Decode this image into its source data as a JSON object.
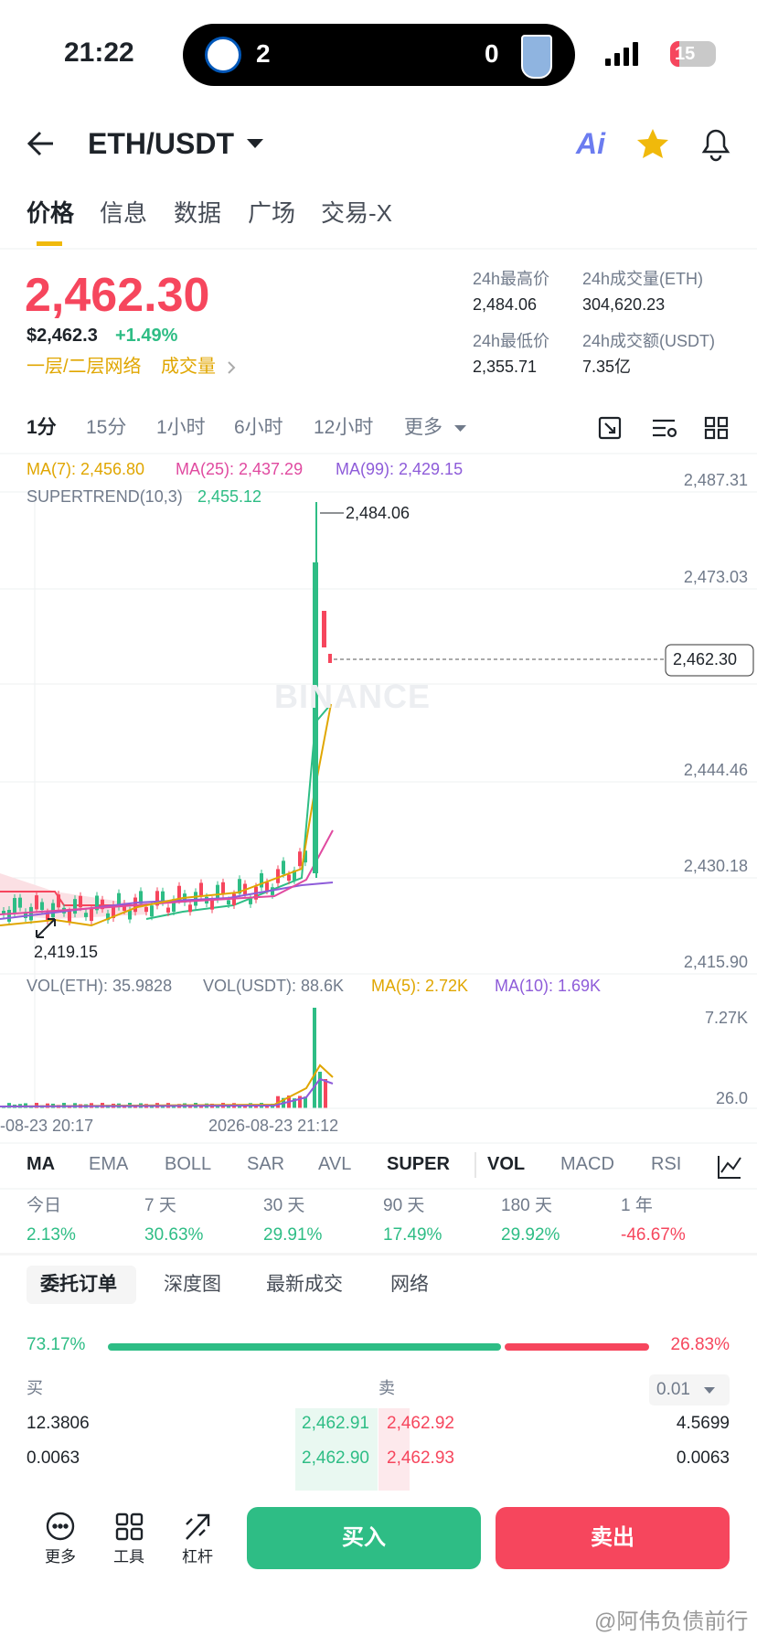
{
  "status": {
    "time": "21:22",
    "score_home": "2",
    "score_away": "0",
    "battery": "15"
  },
  "header": {
    "pair": "ETH/USDT",
    "ai": "Ai"
  },
  "tabs": [
    "价格",
    "信息",
    "数据",
    "广场",
    "交易-X"
  ],
  "price": {
    "last": "2,462.30",
    "usd": "$2,462.3",
    "change": "+1.49%",
    "tags": [
      "一层/二层网络",
      "成交量"
    ]
  },
  "stats": [
    {
      "label": "24h最高价",
      "value": "2,484.06"
    },
    {
      "label": "24h成交量(ETH)",
      "value": "304,620.23"
    },
    {
      "label": "24h最低价",
      "value": "2,355.71"
    },
    {
      "label": "24h成交额(USDT)",
      "value": "7.35亿"
    }
  ],
  "intervals": [
    "1分",
    "15分",
    "1小时",
    "6小时",
    "12小时",
    "更多"
  ],
  "chart": {
    "ma": [
      "MA(7): 2,456.80",
      "MA(25): 2,437.29",
      "MA(99): 2,429.15"
    ],
    "supertrend_label": "SUPERTREND(10,3)",
    "supertrend_value": "2,455.12",
    "yaxis": [
      "2,487.31",
      "2,473.03",
      "2,444.46",
      "2,430.18",
      "2,415.90"
    ],
    "current": "2,462.30",
    "high": "2,484.06",
    "low": "2,419.15",
    "watermark": "BINANCE"
  },
  "volume": {
    "labels": [
      "VOL(ETH): 35.9828",
      "VOL(USDT): 88.6K",
      "MA(5): 2.72K",
      "MA(10): 1.69K"
    ],
    "yaxis": [
      "7.27K",
      "26.0"
    ],
    "xlabels": [
      "-08-23 20:17",
      "2026-08-23 21:12"
    ]
  },
  "indicators": [
    "MA",
    "EMA",
    "BOLL",
    "SAR",
    "AVL",
    "SUPER",
    "VOL",
    "MACD",
    "RSI"
  ],
  "performance": [
    {
      "period": "今日",
      "change": "2.13%"
    },
    {
      "period": "7 天",
      "change": "30.63%"
    },
    {
      "period": "30 天",
      "change": "29.91%"
    },
    {
      "period": "90 天",
      "change": "17.49%"
    },
    {
      "period": "180 天",
      "change": "29.92%"
    },
    {
      "period": "1 年",
      "change": "-46.67%"
    }
  ],
  "orderbook": {
    "tabs": [
      "委托订单",
      "深度图",
      "最新成交",
      "网络"
    ],
    "buy_ratio": "73.17%",
    "sell_ratio": "26.83%",
    "buy_label": "买",
    "sell_label": "卖",
    "precision": "0.01",
    "rows": [
      [
        "12.3806",
        "2,462.91",
        "2,462.92",
        "4.5699"
      ],
      [
        "0.0063",
        "2,462.90",
        "2,462.93",
        "0.0063"
      ]
    ]
  },
  "bottom": {
    "tools": [
      "更多",
      "工具",
      "杠杆"
    ],
    "buy": "买入",
    "sell": "卖出"
  },
  "footer": {
    "watermark": "@阿伟负债前行"
  }
}
